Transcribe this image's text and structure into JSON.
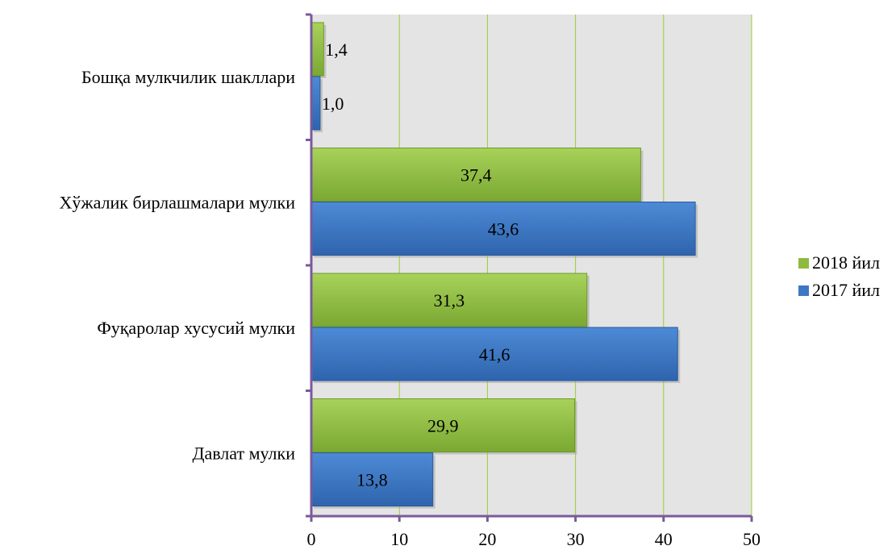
{
  "chart_data": {
    "type": "bar",
    "orientation": "horizontal",
    "categories": [
      "Давлат мулки",
      "Фуқаролар хусусий мулки",
      "Хўжалик бирлашмалари мулки",
      "Бошқа мулкчилик шакллари"
    ],
    "series": [
      {
        "name": "2018 йил",
        "color": "#8dbb3e",
        "values": [
          29.9,
          31.3,
          37.4,
          1.4
        ],
        "labels": [
          "29,9",
          "31,3",
          "37,4",
          "1,4"
        ]
      },
      {
        "name": "2017 йил",
        "color": "#3d78c4",
        "values": [
          13.8,
          41.6,
          43.6,
          1.0
        ],
        "labels": [
          "13,8",
          "41,6",
          "43,6",
          "1,0"
        ]
      }
    ],
    "xlim": [
      0,
      50
    ],
    "xticks": [
      "0",
      "10",
      "20",
      "30",
      "40",
      "50"
    ],
    "grid": true,
    "plot_background": "#e4e4e4",
    "gridline_color": "#9acd32",
    "axis_color": "#7a5a9a",
    "legend_position": "right"
  }
}
